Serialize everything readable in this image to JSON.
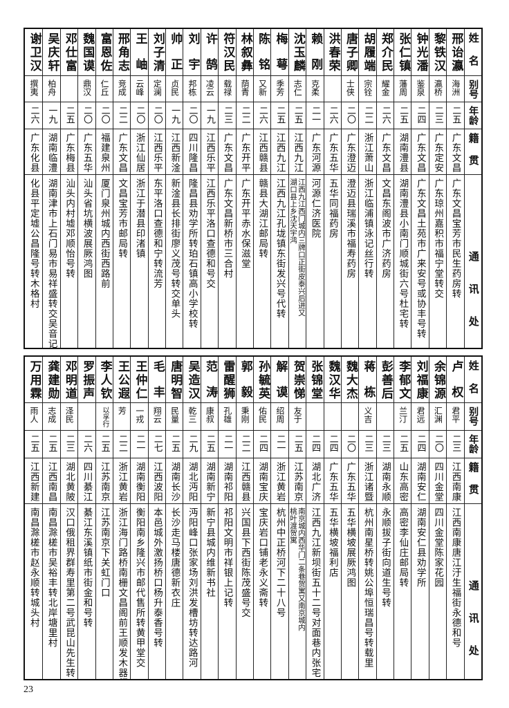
{
  "header_labels": {
    "name": "姓名",
    "alias": "别号",
    "age": "年龄",
    "native": "籍贯",
    "address": "通讯处"
  },
  "tables": [
    {
      "rows": [
        {
          "name": "邢诒瀛",
          "alias": "海洲",
          "age": "二五",
          "native": "广东文昌",
          "address": [
            "广东文昌宝芳市民生药房转"
          ]
        },
        {
          "name": "黎铁汉",
          "alias": "瀛桥",
          "age": "二三",
          "native": "广东定安",
          "address": [
            "广东琼州嘉积市福宁堂转交"
          ]
        },
        {
          "name": "钟光潘",
          "alias": "鉴泉",
          "age": "二四",
          "native": "广东文昌",
          "address": [
            "广东文昌土苑市广来安号或协丰号转"
          ]
        },
        {
          "name": "张仁镇",
          "alias": "藩周",
          "age": "二五",
          "native": "湖南澧县",
          "address": [
            "湖南澧县小南门顺城街六号杜宅转"
          ]
        },
        {
          "name": "郑介民",
          "alias": "耀金",
          "age": "二六",
          "native": "广东文昌",
          "address": [
            "文昌东阁波市广济药房"
          ]
        },
        {
          "name": "胡履端",
          "alias": "宗铨",
          "age": "二二",
          "native": "浙江萧山",
          "address": [
            "浙江临浦镇泳记丝行转"
          ]
        },
        {
          "name": "唐子卿",
          "alias": "士侠",
          "age": "二〇",
          "native": "广东澄迈",
          "address": [
            "澄迈县瑞溪市福寿药房"
          ]
        },
        {
          "name": "洪春荣",
          "alias": "",
          "age": "二六",
          "native": "广东五华",
          "address": [
            "五华同福药房"
          ]
        },
        {
          "name": "赖刚",
          "alias": "克柔",
          "age": "二一",
          "native": "广东河源",
          "address": [
            "河源仁济医院"
          ]
        },
        {
          "name": "沈玉麟",
          "alias": "志仁",
          "age": "二五",
          "native": "江西九江",
          "address": [
            "江西九江西门城内三牌口正街皮泰兴后进又",
            "湖口县上乡沈天宇鸿"
          ]
        },
        {
          "name": "梅萼",
          "alias": "季芳",
          "age": "二五",
          "native": "江西九江",
          "address": [
            "江西九江孔垅镇东街发兴号代转"
          ]
        },
        {
          "name": "陈铭",
          "alias": "又新",
          "age": "二六",
          "native": "江西赣县",
          "address": [
            "赣县大湖江邮局转"
          ]
        },
        {
          "name": "林叙彝",
          "alias": "荫青",
          "age": "二二",
          "native": "广东开平",
          "address": [
            "广东开平赤水保滋堂"
          ]
        },
        {
          "name": "符汉民",
          "alias": "载禄",
          "age": "二三",
          "native": "广东文昌",
          "address": [
            "广东文昌新桥市三合村"
          ]
        },
        {
          "name": "许鹄",
          "alias": "凌云",
          "age": "一九",
          "native": "江西乐平",
          "address": [
            "江西乐平洛口查德和号交"
          ]
        },
        {
          "name": "刘宇",
          "alias": "邦栋",
          "age": "二〇",
          "native": "四川隆昌",
          "address": [
            "隆昌县劝学所转珀石镇高小学校转"
          ]
        },
        {
          "name": "帅正",
          "alias": "贞民",
          "age": "一九",
          "native": "江西新淦",
          "address": [
            "新淦县长排街廖义茂号转交单头"
          ]
        },
        {
          "name": "刘子清",
          "alias": "定澜",
          "age": "二〇",
          "native": "江西乐平",
          "address": [
            "东平洛口查德和宁转流芳"
          ]
        },
        {
          "name": "王岫",
          "alias": "云峰",
          "age": "二〇",
          "native": "浙江仙居",
          "address": [
            "浙江于潜县印渚镇"
          ]
        },
        {
          "name": "邢角志",
          "alias": "竞成",
          "age": "二二",
          "native": "广东文昌",
          "address": [
            "文昌宝芳市邮局转"
          ]
        },
        {
          "name": "富恩佐",
          "alias": "仁丘",
          "age": "二〇",
          "native": "福建泉州",
          "address": [
            "厦门泉州城内西街西路前"
          ]
        },
        {
          "name": "魏国谟",
          "alias": "鼎汉",
          "age": "二〇",
          "native": "广东五华",
          "address": [
            "汕头省坑横波展厥鸿图"
          ]
        },
        {
          "name": "邓仕富",
          "alias": "",
          "age": "二五",
          "native": "广东梅县",
          "address": [
            "汕头内村墟邓顺怡号转"
          ]
        },
        {
          "name": "吴庆轩",
          "alias": "柏舟",
          "age": "一九",
          "native": "湖南临澧",
          "address": [
            "湖南津市上石门易市易祥盛转交吴音记收"
          ]
        },
        {
          "name": "谢卫汉",
          "alias": "撰夷",
          "age": "二六",
          "native": "广东化县",
          "address": [
            "化县平定墟公昌隆号转木格村"
          ]
        }
      ]
    },
    {
      "rows": [
        {
          "name": "卢权",
          "alias": "君平",
          "age": "二三",
          "native": "江西南康",
          "address": [
            "江西南康唐江汙生福街永德和号"
          ]
        },
        {
          "name": "余锦源",
          "alias": "汇渊",
          "age": "二〇",
          "native": "四川金堂",
          "address": [
            "四川金堂陈家花园"
          ]
        },
        {
          "name": "刘福康",
          "alias": "君远",
          "age": "二四",
          "native": "湖南安仁",
          "address": [
            "湖南安仁县劝学所"
          ]
        },
        {
          "name": "李郁文",
          "alias": "兰汀",
          "age": "二五",
          "native": "山东高密",
          "address": [
            "高密李仙庄邮局转"
          ]
        },
        {
          "name": "彭善后",
          "alias": "",
          "age": "二三",
          "native": "湖南永顺",
          "address": [
            "永顺拔子街向道生号转"
          ]
        },
        {
          "name": "蒋栋",
          "alias": "义吉",
          "age": "二三",
          "native": "浙江诸暨",
          "address": [
            "杭州南星桥转姚公埠恒瑞昌号转载里"
          ]
        },
        {
          "name": "魏大杰",
          "alias": "",
          "age": "二〇",
          "native": "广东五华",
          "address": [
            "五华横坡展厥鸿图"
          ]
        },
        {
          "name": "魏汉华",
          "alias": "",
          "age": "二四",
          "native": "广东五华",
          "address": [
            "五华横坡福利店"
          ]
        },
        {
          "name": "张锦堂",
          "alias": "",
          "age": "二四",
          "native": "湖北广济",
          "address": [
            "江西九江新坝街五十二号对面巷内张宅"
          ]
        },
        {
          "name": "贺崇悌",
          "alias": "友于",
          "age": "二五",
          "native": "江苏南京",
          "address": [
            "南京城内西华门二条巷贺寓又南京城内",
            "桃叶渡贺寓"
          ]
        },
        {
          "name": "解谟",
          "alias": "绍周",
          "age": "二一",
          "native": "浙江黄岩",
          "address": [
            "杭州中正桥河下二十八号"
          ]
        },
        {
          "name": "孙毓英",
          "alias": "佑民",
          "age": "二四",
          "native": "湖南宝庆",
          "address": [
            "宝庆岩口铺老永义斋转"
          ]
        },
        {
          "name": "郭毅",
          "alias": "秉刚",
          "age": "二二",
          "native": "江西赣县",
          "address": [
            "兴国县下西街陈茂盛号交"
          ]
        },
        {
          "name": "雷醒狮",
          "alias": "孔雄",
          "age": "二一",
          "native": "湖南祁阳",
          "address": [
            "祁阳文明市祥银上记转"
          ]
        },
        {
          "name": "范涛",
          "alias": "康叔",
          "age": "二五",
          "native": "湖南新宁",
          "address": [
            "新宁县城内维新书社"
          ]
        },
        {
          "name": "吴造汉",
          "alias": "乾三",
          "age": "二九",
          "native": "湖北沔阳",
          "address": [
            "沔阳峰口张家场刘洪发槽坊转达路河"
          ]
        },
        {
          "name": "唐明智",
          "alias": "民量",
          "age": "二五",
          "native": "湖南长沙",
          "address": [
            "长沙走马楼唐德新衣庄"
          ]
        },
        {
          "name": "毛丰",
          "alias": "翔云",
          "age": "二七",
          "native": "江西波阳",
          "address": [
            "本邑城外激扬桥口杨升泰香号转"
          ]
        },
        {
          "name": "王仲仁",
          "alias": "一戎",
          "age": "二一",
          "native": "湖南衡阳",
          "address": [
            "衡阳南乡隆兴市邮代售所转黄甲堂交"
          ]
        },
        {
          "name": "王公遐",
          "alias": "芳",
          "age": "二二",
          "native": "浙江黄岩",
          "address": [
            "浙江海门路桥南栅文昌阁前王顺发木器行直接"
          ]
        },
        {
          "name": "李人钦",
          "alias": "以孚行",
          "age": "二五",
          "native": "江苏南京",
          "address": [
            "江苏南京下关虹门口"
          ]
        },
        {
          "name": "罗振声",
          "alias": "",
          "age": "二六",
          "native": "四川綦江",
          "address": [
            "綦江东溪镇纸市街金和号转"
          ]
        },
        {
          "name": "邓明道",
          "alias": "泽民",
          "age": "二三",
          "native": "湖北黄陂",
          "address": [
            "汉口俄租界群寿里第二号武昆山先生转"
          ]
        },
        {
          "name": "龚建勋",
          "alias": "志成",
          "age": "二五",
          "native": "江西南昌",
          "address": [
            "南昌滁槎市吴裕丰转北岸塘里村"
          ]
        },
        {
          "name": "万用霖",
          "alias": "雨人",
          "age": "二五",
          "native": "江西新建",
          "address": [
            "南昌滁槎市赵永顺转城头村"
          ]
        }
      ]
    }
  ],
  "page_number": "23"
}
